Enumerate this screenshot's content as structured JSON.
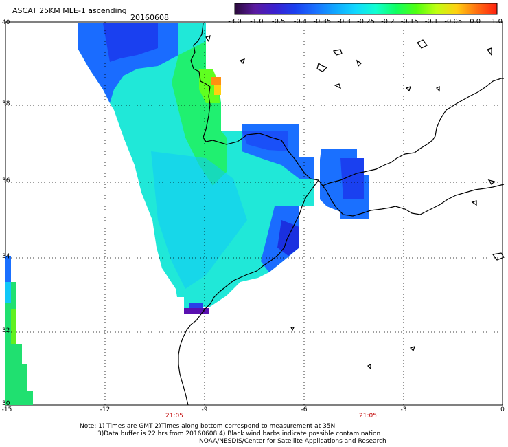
{
  "header": {
    "title": "ASCAT 25KM MLE-1 ascending",
    "date": "20160608"
  },
  "colorbar": {
    "ticks": [
      "-3.0",
      "-1.0",
      "-0.5",
      "-0.4",
      "-0.35",
      "-0.3",
      "-0.25",
      "-0.2",
      "-0.15",
      "-0.1",
      "-0.05",
      "0.0",
      "1.0"
    ],
    "colors": [
      "#2a0a3a",
      "#5a1aa0",
      "#3a20d0",
      "#1a40f0",
      "#1a70ff",
      "#10a8ff",
      "#10d8ff",
      "#10ffd0",
      "#10ff60",
      "#50ff10",
      "#c0ff10",
      "#ffd010",
      "#ff7010",
      "#ff2010"
    ]
  },
  "map": {
    "lat_labels": [
      "40",
      "38",
      "36",
      "34",
      "32",
      "30"
    ],
    "lon_labels": [
      "-15",
      "-12",
      "-9",
      "-6",
      "-3",
      "0"
    ],
    "time_labels": [
      "21:05",
      "21:05"
    ]
  },
  "footer": {
    "line1": "Note: 1) Times are GMT 2)Times along bottom correspond to measurement at 35N",
    "line2": "3)Data buffer is 22 hrs from 20160608 4) Black wind barbs indicate possible contamination",
    "line3": "NOAA/NESDIS/Center for Satellite Applications and Research"
  }
}
